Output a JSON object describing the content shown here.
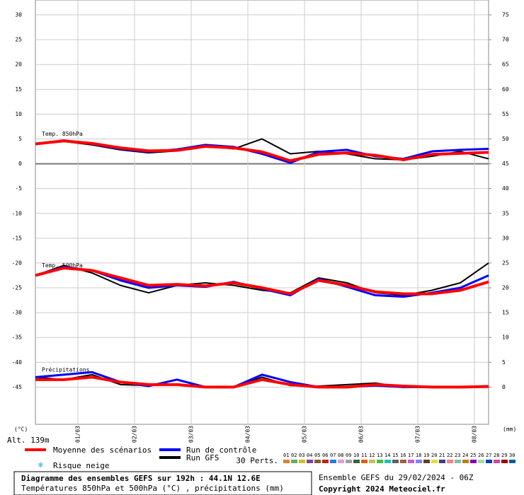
{
  "chart_data": {
    "type": "line",
    "x": [
      0,
      12,
      24,
      36,
      48,
      60,
      72,
      84,
      96,
      108,
      120,
      132,
      144,
      156,
      168,
      180,
      192
    ],
    "xlim": [
      0,
      192
    ],
    "xticks": [
      {
        "value": 18,
        "label": "01/03"
      },
      {
        "value": 42,
        "label": "02/03"
      },
      {
        "value": 66,
        "label": "03/03"
      },
      {
        "value": 90,
        "label": "04/03"
      },
      {
        "value": 114,
        "label": "05/03"
      },
      {
        "value": 138,
        "label": "06/03"
      },
      {
        "value": 162,
        "label": "07/03"
      },
      {
        "value": 186,
        "label": "08/03"
      }
    ],
    "ylim": [
      -52.5,
      33
    ],
    "yticks": [
      30,
      25,
      20,
      15,
      10,
      5,
      0,
      -5,
      -10,
      -15,
      -20,
      -25,
      -30,
      -35,
      -40,
      -45
    ],
    "y2lim": [
      -7.5,
      78
    ],
    "y2ticks": [
      75,
      70,
      65,
      60,
      55,
      50,
      45,
      40,
      35,
      30,
      25,
      20,
      15,
      10,
      5,
      0
    ],
    "ylabel": "(°C)",
    "y2label": "(mm)",
    "altitude": "Alt. 139m",
    "grid": true,
    "panels": [
      {
        "label": "Temp. 850hPa",
        "series": [
          {
            "name": "Moyenne des scénarios",
            "color": "#ff0000",
            "values": [
              4,
              4.6,
              4.1,
              3.2,
              2.6,
              2.7,
              3.5,
              3.2,
              2.4,
              0.6,
              1.9,
              2.2,
              1.7,
              0.8,
              1.9,
              2.1,
              2.3
            ]
          },
          {
            "name": "Run de contrôle",
            "color": "#0000ff",
            "values": [
              4,
              4.7,
              4.0,
              3.0,
              2.4,
              2.9,
              3.8,
              3.4,
              2.0,
              0.2,
              2.4,
              2.8,
              1.5,
              1.0,
              2.5,
              2.8,
              3.0
            ]
          },
          {
            "name": "Run GFS",
            "color": "#000000",
            "values": [
              4,
              4.5,
              3.8,
              2.8,
              2.2,
              2.6,
              3.6,
              3.0,
              5.0,
              2.0,
              2.5,
              2.0,
              1.0,
              0.8,
              1.5,
              2.5,
              1.0
            ]
          }
        ]
      },
      {
        "label": "Temp. 500hPa",
        "series": [
          {
            "color": "#ff0000",
            "values": [
              -22.5,
              -21,
              -21.5,
              -23,
              -24.5,
              -24.3,
              -24.6,
              -24,
              -25,
              -26.2,
              -23.5,
              -24.5,
              -25.8,
              -26.2,
              -26.2,
              -25.5,
              -23.8
            ]
          },
          {
            "color": "#0000ff",
            "values": [
              -22.5,
              -20.8,
              -21.5,
              -23.5,
              -25,
              -24.5,
              -24.8,
              -23.8,
              -25.2,
              -26.5,
              -23.2,
              -24.8,
              -26.5,
              -26.8,
              -26,
              -25,
              -22.5
            ]
          },
          {
            "color": "#000000",
            "values": [
              -22.5,
              -20.5,
              -22,
              -24.5,
              -26,
              -24.5,
              -24,
              -24.5,
              -25.5,
              -26,
              -23,
              -24,
              -26,
              -26.5,
              -25.5,
              -24,
              -20
            ]
          }
        ]
      },
      {
        "label": "Précipitations",
        "axis": "y2",
        "series": [
          {
            "color": "#ff0000",
            "values": [
              1.5,
              1.5,
              2,
              1,
              0.5,
              0.5,
              0,
              0,
              1.5,
              0.5,
              0,
              0,
              0.5,
              0.2,
              0,
              0,
              0.1
            ]
          },
          {
            "color": "#0000ff",
            "values": [
              2,
              2.5,
              3,
              1,
              0.2,
              1.5,
              0,
              0,
              2.5,
              1,
              0,
              0,
              0.3,
              0,
              0,
              0,
              0.2
            ]
          },
          {
            "color": "#000000",
            "values": [
              2,
              1.5,
              2.5,
              0.5,
              0.3,
              0.5,
              0,
              0,
              2,
              0.3,
              0.2,
              0.5,
              0.8,
              0,
              0,
              0,
              0
            ]
          }
        ]
      }
    ],
    "snow_label": "Risque neige",
    "perturbations": {
      "label": "30 Perts.",
      "members": [
        {
          "id": "01",
          "color": "#e08030"
        },
        {
          "id": "02",
          "color": "#60b060"
        },
        {
          "id": "03",
          "color": "#d0c020"
        },
        {
          "id": "04",
          "color": "#8040a0"
        },
        {
          "id": "05",
          "color": "#806030"
        },
        {
          "id": "06",
          "color": "#c02020"
        },
        {
          "id": "07",
          "color": "#2080e0"
        },
        {
          "id": "08",
          "color": "#e0a0c0"
        },
        {
          "id": "09",
          "color": "#a0a0a0"
        },
        {
          "id": "10",
          "color": "#406040"
        },
        {
          "id": "11",
          "color": "#e06000"
        },
        {
          "id": "12",
          "color": "#c0c060"
        },
        {
          "id": "13",
          "color": "#40c040"
        },
        {
          "id": "14",
          "color": "#20c0c0"
        },
        {
          "id": "15",
          "color": "#606060"
        },
        {
          "id": "16",
          "color": "#a06040"
        },
        {
          "id": "17",
          "color": "#c060e0"
        },
        {
          "id": "18",
          "color": "#8080ff"
        },
        {
          "id": "19",
          "color": "#604020"
        },
        {
          "id": "20",
          "color": "#e0e040"
        },
        {
          "id": "21",
          "color": "#404080"
        },
        {
          "id": "22",
          "color": "#ff8080"
        },
        {
          "id": "23",
          "color": "#80c0a0"
        },
        {
          "id": "24",
          "color": "#c08000"
        },
        {
          "id": "25",
          "color": "#8000c0"
        },
        {
          "id": "26",
          "color": "#a0e0a0"
        },
        {
          "id": "27",
          "color": "#0040c0"
        },
        {
          "id": "28",
          "color": "#e040a0"
        },
        {
          "id": "29",
          "color": "#a00000"
        },
        {
          "id": "30",
          "color": "#0060a0"
        }
      ]
    },
    "title": "Diagramme des ensembles GEFS sur 192h : 44.1N 12.6E",
    "subtitle": "Températures 850hPa et 500hPa (°C) , précipitations (mm)",
    "run_info": "Ensemble GEFS du 29/02/2024 - 06Z",
    "copyright": "Copyright 2024 Meteociel.fr"
  }
}
